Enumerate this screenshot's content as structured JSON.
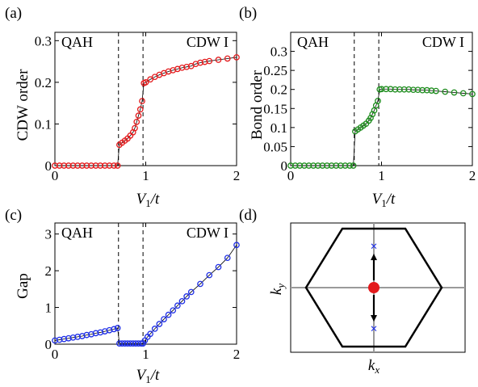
{
  "colors": {
    "red": "#e31a1c",
    "green": "#1e8c1e",
    "blue": "#1f2fe6",
    "grid_gray": "#9a9a9a",
    "marker_blue": "#1f2fe6",
    "marker_red": "#e31a1c"
  },
  "chart_data": [
    {
      "panel": "(a)",
      "type": "scatter",
      "ylabel": "CDW order",
      "xlabel_var": "V",
      "xlabel_sub": "1",
      "xlabel_rest": "/t",
      "xlim": [
        0,
        2
      ],
      "ylim": [
        0,
        0.32
      ],
      "xticks": [
        "0",
        "1",
        "2"
      ],
      "yticks": [
        "0",
        "0.1",
        "0.2",
        "0.3"
      ],
      "xtick_values": [
        0,
        1,
        2
      ],
      "ytick_values": [
        0,
        0.1,
        0.2,
        0.3
      ],
      "region_labels": [
        "QAH",
        "CDW I"
      ],
      "transitions": [
        0.7,
        0.97
      ],
      "color": "red",
      "series": [
        {
          "x": [
            0,
            0.05,
            0.1,
            0.15,
            0.2,
            0.25,
            0.3,
            0.35,
            0.4,
            0.45,
            0.5,
            0.55,
            0.6,
            0.65,
            0.69
          ],
          "y": [
            0,
            0,
            0,
            0,
            0,
            0,
            0,
            0,
            0,
            0,
            0,
            0,
            0,
            0,
            0
          ]
        },
        {
          "x": [
            0.71,
            0.74,
            0.77,
            0.8,
            0.83,
            0.86,
            0.88,
            0.9,
            0.92,
            0.94,
            0.96
          ],
          "y": [
            0.05,
            0.055,
            0.06,
            0.065,
            0.072,
            0.08,
            0.09,
            0.105,
            0.12,
            0.135,
            0.155
          ]
        },
        {
          "x": [
            0.98,
            1.0,
            1.05,
            1.1,
            1.15,
            1.2,
            1.25,
            1.3,
            1.35,
            1.4,
            1.45,
            1.5,
            1.55,
            1.6,
            1.65,
            1.7,
            1.8,
            1.9,
            2.0
          ],
          "y": [
            0.198,
            0.2,
            0.207,
            0.213,
            0.218,
            0.222,
            0.226,
            0.229,
            0.232,
            0.235,
            0.237,
            0.239,
            0.244,
            0.247,
            0.249,
            0.251,
            0.254,
            0.257,
            0.26
          ]
        }
      ]
    },
    {
      "panel": "(b)",
      "type": "scatter",
      "ylabel": "Bond order",
      "xlabel_var": "V",
      "xlabel_sub": "1",
      "xlabel_rest": "/t",
      "xlim": [
        0,
        2
      ],
      "ylim": [
        0,
        0.35
      ],
      "xticks": [
        "0",
        "1",
        "2"
      ],
      "yticks": [
        "0",
        "0.05",
        "0.1",
        "0.15",
        "0.2",
        "0.25",
        "0.3"
      ],
      "xtick_values": [
        0,
        1,
        2
      ],
      "ytick_values": [
        0,
        0.05,
        0.1,
        0.15,
        0.2,
        0.25,
        0.3
      ],
      "region_labels": [
        "QAH",
        "CDW I"
      ],
      "transitions": [
        0.7,
        0.97
      ],
      "color": "green",
      "series": [
        {
          "x": [
            0,
            0.05,
            0.1,
            0.15,
            0.2,
            0.25,
            0.3,
            0.35,
            0.4,
            0.45,
            0.5,
            0.55,
            0.6,
            0.65,
            0.69
          ],
          "y": [
            0,
            0,
            0,
            0,
            0,
            0,
            0,
            0,
            0,
            0,
            0,
            0,
            0,
            0,
            0
          ]
        },
        {
          "x": [
            0.71,
            0.74,
            0.77,
            0.8,
            0.83,
            0.86,
            0.88,
            0.9,
            0.92,
            0.94,
            0.96
          ],
          "y": [
            0.09,
            0.095,
            0.1,
            0.105,
            0.11,
            0.118,
            0.125,
            0.135,
            0.145,
            0.158,
            0.17
          ]
        },
        {
          "x": [
            0.98,
            1.0,
            1.05,
            1.1,
            1.15,
            1.2,
            1.25,
            1.3,
            1.35,
            1.4,
            1.45,
            1.5,
            1.55,
            1.6,
            1.7,
            1.8,
            1.9,
            2.0
          ],
          "y": [
            0.2,
            0.201,
            0.201,
            0.201,
            0.2,
            0.2,
            0.2,
            0.2,
            0.199,
            0.199,
            0.198,
            0.198,
            0.197,
            0.196,
            0.194,
            0.192,
            0.19,
            0.188
          ]
        }
      ]
    },
    {
      "panel": "(c)",
      "type": "scatter",
      "ylabel": "Gap",
      "xlabel_var": "V",
      "xlabel_sub": "1",
      "xlabel_rest": "/t",
      "xlim": [
        0,
        2
      ],
      "ylim": [
        0,
        3.3
      ],
      "xticks": [
        "0",
        "1",
        "2"
      ],
      "yticks": [
        "0",
        "1",
        "2",
        "3"
      ],
      "xtick_values": [
        0,
        1,
        2
      ],
      "ytick_values": [
        0,
        1,
        2,
        3
      ],
      "region_labels": [
        "QAH",
        "CDW I"
      ],
      "transitions": [
        0.7,
        0.97
      ],
      "color": "blue",
      "series": [
        {
          "x": [
            0,
            0.05,
            0.1,
            0.15,
            0.2,
            0.25,
            0.3,
            0.35,
            0.4,
            0.45,
            0.5,
            0.55,
            0.6,
            0.65,
            0.69
          ],
          "y": [
            0.1,
            0.12,
            0.14,
            0.16,
            0.18,
            0.2,
            0.22,
            0.25,
            0.27,
            0.3,
            0.32,
            0.35,
            0.38,
            0.41,
            0.44
          ]
        },
        {
          "x": [
            0.71,
            0.74,
            0.77,
            0.8,
            0.83,
            0.86,
            0.89,
            0.92,
            0.95,
            0.97
          ],
          "y": [
            0.02,
            0.02,
            0.02,
            0.02,
            0.02,
            0.02,
            0.02,
            0.02,
            0.02,
            0.02
          ]
        },
        {
          "x": [
            0.99,
            1.02,
            1.05,
            1.1,
            1.15,
            1.2,
            1.25,
            1.3,
            1.35,
            1.4,
            1.45,
            1.5,
            1.6,
            1.7,
            1.8,
            1.9,
            2.0
          ],
          "y": [
            0.1,
            0.2,
            0.28,
            0.42,
            0.55,
            0.68,
            0.8,
            0.92,
            1.05,
            1.17,
            1.3,
            1.42,
            1.64,
            1.88,
            2.1,
            2.35,
            2.7
          ]
        }
      ]
    }
  ],
  "bz_panel": {
    "panel": "(d)",
    "xlabel_var": "k",
    "xlabel_sub": "x",
    "ylabel_var": "k",
    "ylabel_sub": "y"
  }
}
